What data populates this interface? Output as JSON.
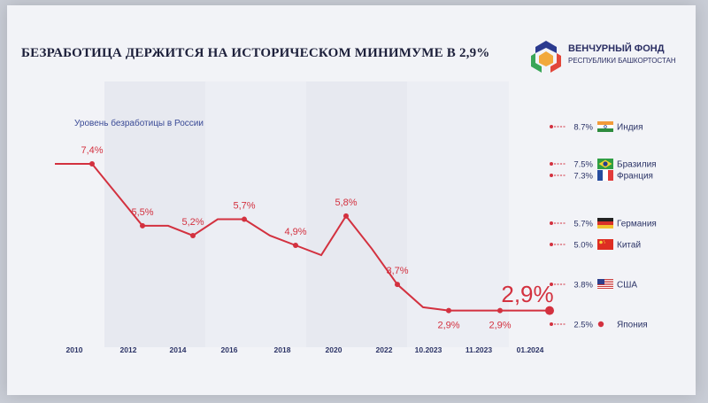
{
  "slide": {
    "title": "БЕЗРАБОТИЦА ДЕРЖИТСЯ НА ИСТОРИЧЕСКОМ МИНИМУМЕ В 2,9%",
    "logo": {
      "name": "ВЕНЧУРНЫЙ ФОНД",
      "subtitle": "РЕСПУБЛИКИ БАШКОРТОСТАН",
      "colors": [
        "#2b3a8f",
        "#e2473a",
        "#3aa657",
        "#f2a93b"
      ]
    }
  },
  "chart_data": [
    {
      "type": "line",
      "title": "Уровень безработицы в России",
      "x_tick_labels": [
        "2010",
        "2012",
        "2014",
        "2016",
        "2018",
        "2020",
        "2022",
        "10.2023",
        "11.2023",
        "01.2024"
      ],
      "points": [
        {
          "x": "2010",
          "y": 7.4,
          "label": ""
        },
        {
          "x": "2011",
          "y": 7.4,
          "label": "7,4%"
        },
        {
          "x": "2012",
          "y": 5.5,
          "label": "5,5%"
        },
        {
          "x": "2013",
          "y": 5.5,
          "label": ""
        },
        {
          "x": "2014",
          "y": 5.2,
          "label": "5,2%"
        },
        {
          "x": "2015",
          "y": 5.7,
          "label": ""
        },
        {
          "x": "2016",
          "y": 5.7,
          "label": "5,7%"
        },
        {
          "x": "2017",
          "y": 5.2,
          "label": ""
        },
        {
          "x": "2018",
          "y": 4.9,
          "label": "4,9%"
        },
        {
          "x": "2019",
          "y": 4.6,
          "label": ""
        },
        {
          "x": "2020",
          "y": 5.8,
          "label": "5,8%"
        },
        {
          "x": "2021",
          "y": 4.8,
          "label": ""
        },
        {
          "x": "2022",
          "y": 3.7,
          "label": "3,7%"
        },
        {
          "x": "2023",
          "y": 3.0,
          "label": ""
        },
        {
          "x": "10.2023",
          "y": 2.9,
          "label": "2,9%"
        },
        {
          "x": "11.2023",
          "y": 2.9,
          "label": "2,9%"
        },
        {
          "x": "01.2024",
          "y": 2.9,
          "label": ""
        }
      ],
      "highlight": {
        "x": "01.2024",
        "y": 2.9,
        "label": "2,9%"
      },
      "line_color": "#d3313f",
      "ylim": [
        2.5,
        8.7
      ],
      "grid": false
    },
    {
      "type": "bar",
      "title": "",
      "comparison": [
        {
          "country": "Индия",
          "value": 8.7,
          "label": "8.7%",
          "flag": "india-flag"
        },
        {
          "country": "Бразилия",
          "value": 7.5,
          "label": "7.5%",
          "flag": "brazil-flag"
        },
        {
          "country": "Франция",
          "value": 7.3,
          "label": "7.3%",
          "flag": "france-flag"
        },
        {
          "country": "Германия",
          "value": 5.7,
          "label": "5.7%",
          "flag": "germany-flag"
        },
        {
          "country": "Китай",
          "value": 5.0,
          "label": "5.0%",
          "flag": "china-flag"
        },
        {
          "country": "США",
          "value": 3.8,
          "label": "3.8%",
          "flag": "usa-flag"
        },
        {
          "country": "Япония",
          "value": 2.5,
          "label": "2.5%",
          "flag": "red-dot-marker"
        }
      ]
    }
  ]
}
